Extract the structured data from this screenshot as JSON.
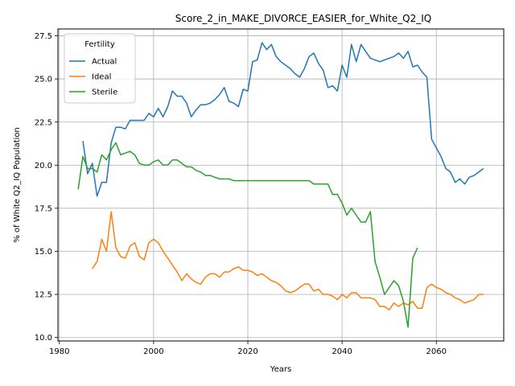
{
  "chart_data": {
    "type": "line",
    "title": "Score_2_in_MAKE_DIVORCE_EASIER_for_White_Q2_IQ",
    "xlabel": "Years",
    "ylabel": "% of White Q2_IQ Population",
    "xlim": [
      1979.7,
      2074.3
    ],
    "ylim": [
      9.8,
      27.9
    ],
    "xticks": [
      1980,
      2000,
      2020,
      2040,
      2060
    ],
    "yticks": [
      10.0,
      12.5,
      15.0,
      17.5,
      20.0,
      22.5,
      25.0,
      27.5
    ],
    "ytick_labels": [
      "10.0",
      "12.5",
      "15.0",
      "17.5",
      "20.0",
      "22.5",
      "25.0",
      "27.5"
    ],
    "grid": true,
    "legend": {
      "title": "Fertility",
      "placement": "top-left"
    },
    "series": [
      {
        "name": "Actual",
        "color": "#1f77b4",
        "x": [
          1985,
          1986,
          1987,
          1988,
          1989,
          1990,
          1991,
          1992,
          1993,
          1994,
          1995,
          1996,
          1997,
          1998,
          1999,
          2000,
          2001,
          2002,
          2003,
          2004,
          2005,
          2006,
          2007,
          2008,
          2009,
          2010,
          2011,
          2012,
          2013,
          2014,
          2015,
          2016,
          2017,
          2018,
          2019,
          2020,
          2021,
          2022,
          2023,
          2024,
          2025,
          2026,
          2027,
          2028,
          2029,
          2030,
          2031,
          2032,
          2033,
          2034,
          2035,
          2036,
          2037,
          2038,
          2039,
          2040,
          2041,
          2042,
          2043,
          2044,
          2045,
          2046,
          2047,
          2048,
          2049,
          2050,
          2051,
          2052,
          2053,
          2054,
          2055,
          2056,
          2057,
          2058,
          2059,
          2060,
          2061,
          2062,
          2063,
          2064,
          2065,
          2066,
          2067,
          2068,
          2069,
          2070
        ],
        "values": [
          21.4,
          19.5,
          20.1,
          18.2,
          19.0,
          19.0,
          21.3,
          22.2,
          22.2,
          22.1,
          22.6,
          22.6,
          22.6,
          22.6,
          23.0,
          22.8,
          23.3,
          22.8,
          23.4,
          24.3,
          24.0,
          24.0,
          23.6,
          22.8,
          23.2,
          23.5,
          23.5,
          23.6,
          23.8,
          24.1,
          24.5,
          23.7,
          23.6,
          23.4,
          24.4,
          24.3,
          26.0,
          26.1,
          27.1,
          26.7,
          27.0,
          26.3,
          26.0,
          25.8,
          25.6,
          25.3,
          25.1,
          25.6,
          26.3,
          26.5,
          25.9,
          25.5,
          24.5,
          24.6,
          24.3,
          25.8,
          25.1,
          27.0,
          26.0,
          27.0,
          26.6,
          26.2,
          26.1,
          26.0,
          26.1,
          26.2,
          26.3,
          26.5,
          26.2,
          26.6,
          25.7,
          25.8,
          25.4,
          25.1,
          21.5,
          21.0,
          20.5,
          19.8,
          19.6,
          19.0,
          19.2,
          18.9,
          19.3,
          19.4,
          19.6,
          19.8
        ]
      },
      {
        "name": "Ideal",
        "color": "#ff7f0e",
        "x": [
          1987,
          1988,
          1989,
          1990,
          1991,
          1992,
          1993,
          1994,
          1995,
          1996,
          1997,
          1998,
          1999,
          2000,
          2001,
          2002,
          2003,
          2004,
          2005,
          2006,
          2007,
          2008,
          2009,
          2010,
          2011,
          2012,
          2013,
          2014,
          2015,
          2016,
          2017,
          2018,
          2019,
          2020,
          2021,
          2022,
          2023,
          2024,
          2025,
          2026,
          2027,
          2028,
          2029,
          2030,
          2031,
          2032,
          2033,
          2034,
          2035,
          2036,
          2037,
          2038,
          2039,
          2040,
          2041,
          2042,
          2043,
          2044,
          2045,
          2046,
          2047,
          2048,
          2049,
          2050,
          2051,
          2052,
          2053,
          2054,
          2055,
          2056,
          2057,
          2058,
          2059,
          2060,
          2061,
          2062,
          2063,
          2064,
          2065,
          2066,
          2067,
          2068,
          2069,
          2070
        ],
        "values": [
          14.0,
          14.4,
          15.7,
          15.0,
          17.3,
          15.2,
          14.7,
          14.6,
          15.3,
          15.5,
          14.7,
          14.5,
          15.5,
          15.7,
          15.5,
          15.0,
          14.6,
          14.2,
          13.8,
          13.3,
          13.7,
          13.4,
          13.2,
          13.1,
          13.5,
          13.7,
          13.7,
          13.5,
          13.8,
          13.8,
          14.0,
          14.1,
          13.9,
          13.9,
          13.8,
          13.6,
          13.7,
          13.5,
          13.3,
          13.2,
          13.0,
          12.7,
          12.6,
          12.7,
          12.9,
          13.1,
          13.1,
          12.7,
          12.8,
          12.5,
          12.5,
          12.4,
          12.2,
          12.5,
          12.3,
          12.6,
          12.6,
          12.3,
          12.3,
          12.3,
          12.2,
          11.8,
          11.8,
          11.6,
          12.0,
          11.8,
          12.0,
          11.9,
          12.1,
          11.7,
          11.7,
          12.9,
          13.1,
          12.9,
          12.8,
          12.6,
          12.5,
          12.3,
          12.2,
          12.0,
          12.1,
          12.2,
          12.5,
          12.5
        ]
      },
      {
        "name": "Sterile",
        "color": "#2ca02c",
        "x": [
          1984,
          1985,
          1986,
          1987,
          1988,
          1989,
          1990,
          1991,
          1992,
          1993,
          1994,
          1995,
          1996,
          1997,
          1998,
          1999,
          2000,
          2001,
          2002,
          2003,
          2004,
          2005,
          2006,
          2007,
          2008,
          2009,
          2010,
          2011,
          2012,
          2013,
          2014,
          2015,
          2016,
          2017,
          2018,
          2019,
          2020,
          2021,
          2022,
          2023,
          2024,
          2025,
          2026,
          2027,
          2028,
          2029,
          2030,
          2031,
          2032,
          2033,
          2034,
          2035,
          2036,
          2037,
          2038,
          2039,
          2040,
          2041,
          2042,
          2043,
          2044,
          2045,
          2046,
          2047,
          2048,
          2049,
          2050,
          2051,
          2052,
          2053,
          2054,
          2055,
          2056
        ],
        "values": [
          18.6,
          20.5,
          19.8,
          19.8,
          19.6,
          20.6,
          20.3,
          20.9,
          21.3,
          20.6,
          20.7,
          20.8,
          20.6,
          20.1,
          20.0,
          20.0,
          20.2,
          20.3,
          20.0,
          20.0,
          20.3,
          20.3,
          20.1,
          19.9,
          19.9,
          19.7,
          19.6,
          19.4,
          19.4,
          19.3,
          19.2,
          19.2,
          19.2,
          19.1,
          19.1,
          19.1,
          19.1,
          19.1,
          19.1,
          19.1,
          19.1,
          19.1,
          19.1,
          19.1,
          19.1,
          19.1,
          19.1,
          19.1,
          19.1,
          19.1,
          18.9,
          18.9,
          18.9,
          18.9,
          18.3,
          18.3,
          17.8,
          17.1,
          17.5,
          17.1,
          16.7,
          16.7,
          17.3,
          14.4,
          13.5,
          12.5,
          12.9,
          13.3,
          13.0,
          12.1,
          10.6,
          14.6,
          15.2
        ]
      }
    ]
  }
}
